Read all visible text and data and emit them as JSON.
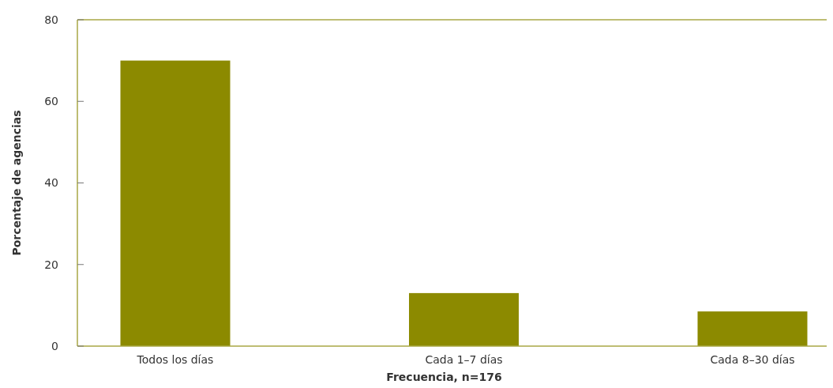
{
  "chart_data": {
    "type": "bar",
    "xlabel": "Frecuencia, n=176",
    "ylabel": "Porcentaje de agencias",
    "categories": [
      "Todos los días",
      "Cada 1–7 días",
      "Cada 8–30 días"
    ],
    "values": [
      70,
      13,
      8.5
    ],
    "color": "#8c8a00",
    "ylim": [
      0,
      80
    ],
    "yticks": [
      0,
      20,
      40,
      60,
      80
    ],
    "grid": false
  }
}
